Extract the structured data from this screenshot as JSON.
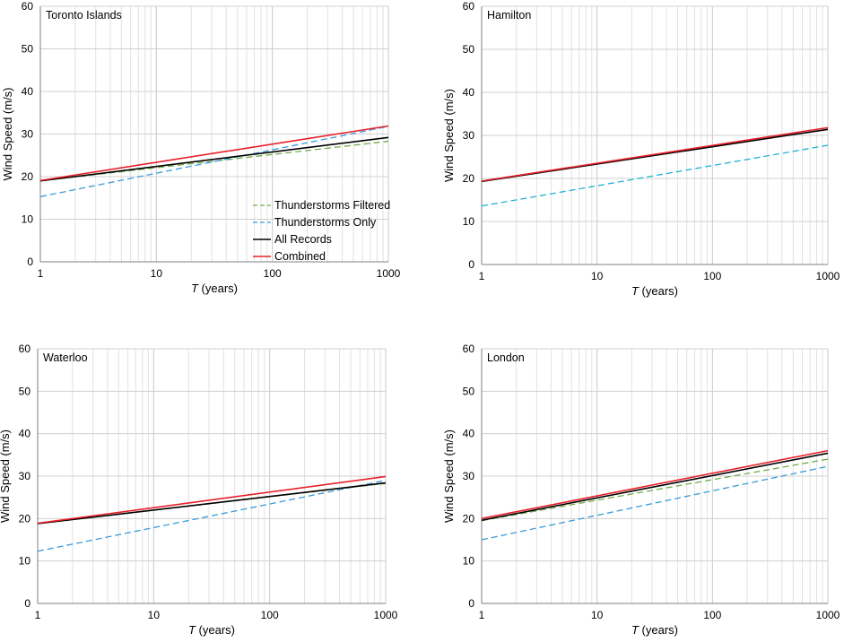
{
  "chart_data": [
    {
      "type": "line",
      "title": "Toronto Islands",
      "xlabel_symbol": "T",
      "xlabel_units": " (years)",
      "ylabel": "Wind Speed (m/s)",
      "xscale": "log",
      "xlim": [
        1,
        1000
      ],
      "ylim": [
        0,
        60
      ],
      "xticks": [
        1,
        10,
        100,
        1000
      ],
      "xtick_labels": [
        "1",
        "10",
        "100",
        "1000"
      ],
      "yticks": [
        0,
        10,
        20,
        30,
        40,
        50,
        60
      ],
      "ytick_labels": [
        "0",
        "10",
        "20",
        "30",
        "40",
        "50",
        "60"
      ],
      "grid": true,
      "legend": {
        "position": "bottom-right"
      },
      "series": [
        {
          "name": "Thunderstorms Filtered",
          "color": "#70ad47",
          "dash": "dashed",
          "x": [
            1,
            1000
          ],
          "y": [
            19.0,
            28.3
          ]
        },
        {
          "name": "Thunderstorms Only",
          "color": "#3a9ad9",
          "dash": "dashed",
          "x": [
            1,
            1000
          ],
          "y": [
            15.3,
            31.8
          ]
        },
        {
          "name": "All Records",
          "color": "#000000",
          "dash": "solid",
          "x": [
            1,
            1000
          ],
          "y": [
            19.0,
            29.2
          ]
        },
        {
          "name": "Combined",
          "color": "#e8202a",
          "dash": "solid",
          "x": [
            1,
            1000
          ],
          "y": [
            19.1,
            31.9
          ]
        }
      ]
    },
    {
      "type": "line",
      "title": "Hamilton",
      "xlabel_symbol": "T",
      "xlabel_units": " (years)",
      "ylabel": "Wind Speed (m/s)",
      "xscale": "log",
      "xlim": [
        1,
        1000
      ],
      "ylim": [
        0,
        60
      ],
      "xticks": [
        1,
        10,
        100,
        1000
      ],
      "xtick_labels": [
        "1",
        "10",
        "100",
        "1000"
      ],
      "yticks": [
        0,
        10,
        20,
        30,
        40,
        50,
        60
      ],
      "ytick_labels": [
        "0",
        "10",
        "20",
        "30",
        "40",
        "50",
        "60"
      ],
      "grid": true,
      "series": [
        {
          "name": "Thunderstorms Filtered",
          "color": "#70ad47",
          "dash": "dashed",
          "x": [
            1,
            1000
          ],
          "y": [
            19.3,
            31.4
          ]
        },
        {
          "name": "Thunderstorms Only",
          "color": "#1fb3d4",
          "dash": "dashed",
          "x": [
            1,
            1000
          ],
          "y": [
            13.6,
            27.7
          ]
        },
        {
          "name": "All Records",
          "color": "#000000",
          "dash": "solid",
          "x": [
            1,
            1000
          ],
          "y": [
            19.3,
            31.4
          ]
        },
        {
          "name": "Combined",
          "color": "#e8202a",
          "dash": "solid",
          "x": [
            1,
            1000
          ],
          "y": [
            19.4,
            31.8
          ]
        }
      ]
    },
    {
      "type": "line",
      "title": "Waterloo",
      "xlabel_symbol": "T",
      "xlabel_units": " (years)",
      "ylabel": "Wind Speed (m/s)",
      "xscale": "log",
      "xlim": [
        1,
        1000
      ],
      "ylim": [
        0,
        60
      ],
      "xticks": [
        1,
        10,
        100,
        1000
      ],
      "xtick_labels": [
        "1",
        "10",
        "100",
        "1000"
      ],
      "yticks": [
        0,
        10,
        20,
        30,
        40,
        50,
        60
      ],
      "ytick_labels": [
        "0",
        "10",
        "20",
        "30",
        "40",
        "50",
        "60"
      ],
      "grid": true,
      "series": [
        {
          "name": "Thunderstorms Filtered",
          "color": "#70ad47",
          "dash": "dashed",
          "x": [
            1,
            1000
          ],
          "y": [
            18.8,
            28.3
          ]
        },
        {
          "name": "Thunderstorms Only",
          "color": "#3a9ad9",
          "dash": "dashed",
          "x": [
            1,
            1000
          ],
          "y": [
            12.3,
            29.0
          ]
        },
        {
          "name": "All Records",
          "color": "#000000",
          "dash": "solid",
          "x": [
            1,
            1000
          ],
          "y": [
            18.8,
            28.4
          ]
        },
        {
          "name": "Combined",
          "color": "#e8202a",
          "dash": "solid",
          "x": [
            1,
            1000
          ],
          "y": [
            18.9,
            29.9
          ]
        }
      ]
    },
    {
      "type": "line",
      "title": "London",
      "xlabel_symbol": "T",
      "xlabel_units": " (years)",
      "ylabel": "Wind Speed (m/s)",
      "xscale": "log",
      "xlim": [
        1,
        1000
      ],
      "ylim": [
        0,
        60
      ],
      "xticks": [
        1,
        10,
        100,
        1000
      ],
      "xtick_labels": [
        "1",
        "10",
        "100",
        "1000"
      ],
      "yticks": [
        0,
        10,
        20,
        30,
        40,
        50,
        60
      ],
      "ytick_labels": [
        "0",
        "10",
        "20",
        "30",
        "40",
        "50",
        "60"
      ],
      "grid": true,
      "series": [
        {
          "name": "Thunderstorms Filtered",
          "color": "#70ad47",
          "dash": "dashed",
          "x": [
            1,
            1000
          ],
          "y": [
            19.5,
            34.0
          ]
        },
        {
          "name": "Thunderstorms Only",
          "color": "#3a9ad9",
          "dash": "dashed",
          "x": [
            1,
            1000
          ],
          "y": [
            15.0,
            32.3
          ]
        },
        {
          "name": "All Records",
          "color": "#000000",
          "dash": "solid",
          "x": [
            1,
            1000
          ],
          "y": [
            19.6,
            35.4
          ]
        },
        {
          "name": "Combined",
          "color": "#e8202a",
          "dash": "solid",
          "x": [
            1,
            1000
          ],
          "y": [
            20.0,
            36.0
          ]
        }
      ]
    }
  ]
}
